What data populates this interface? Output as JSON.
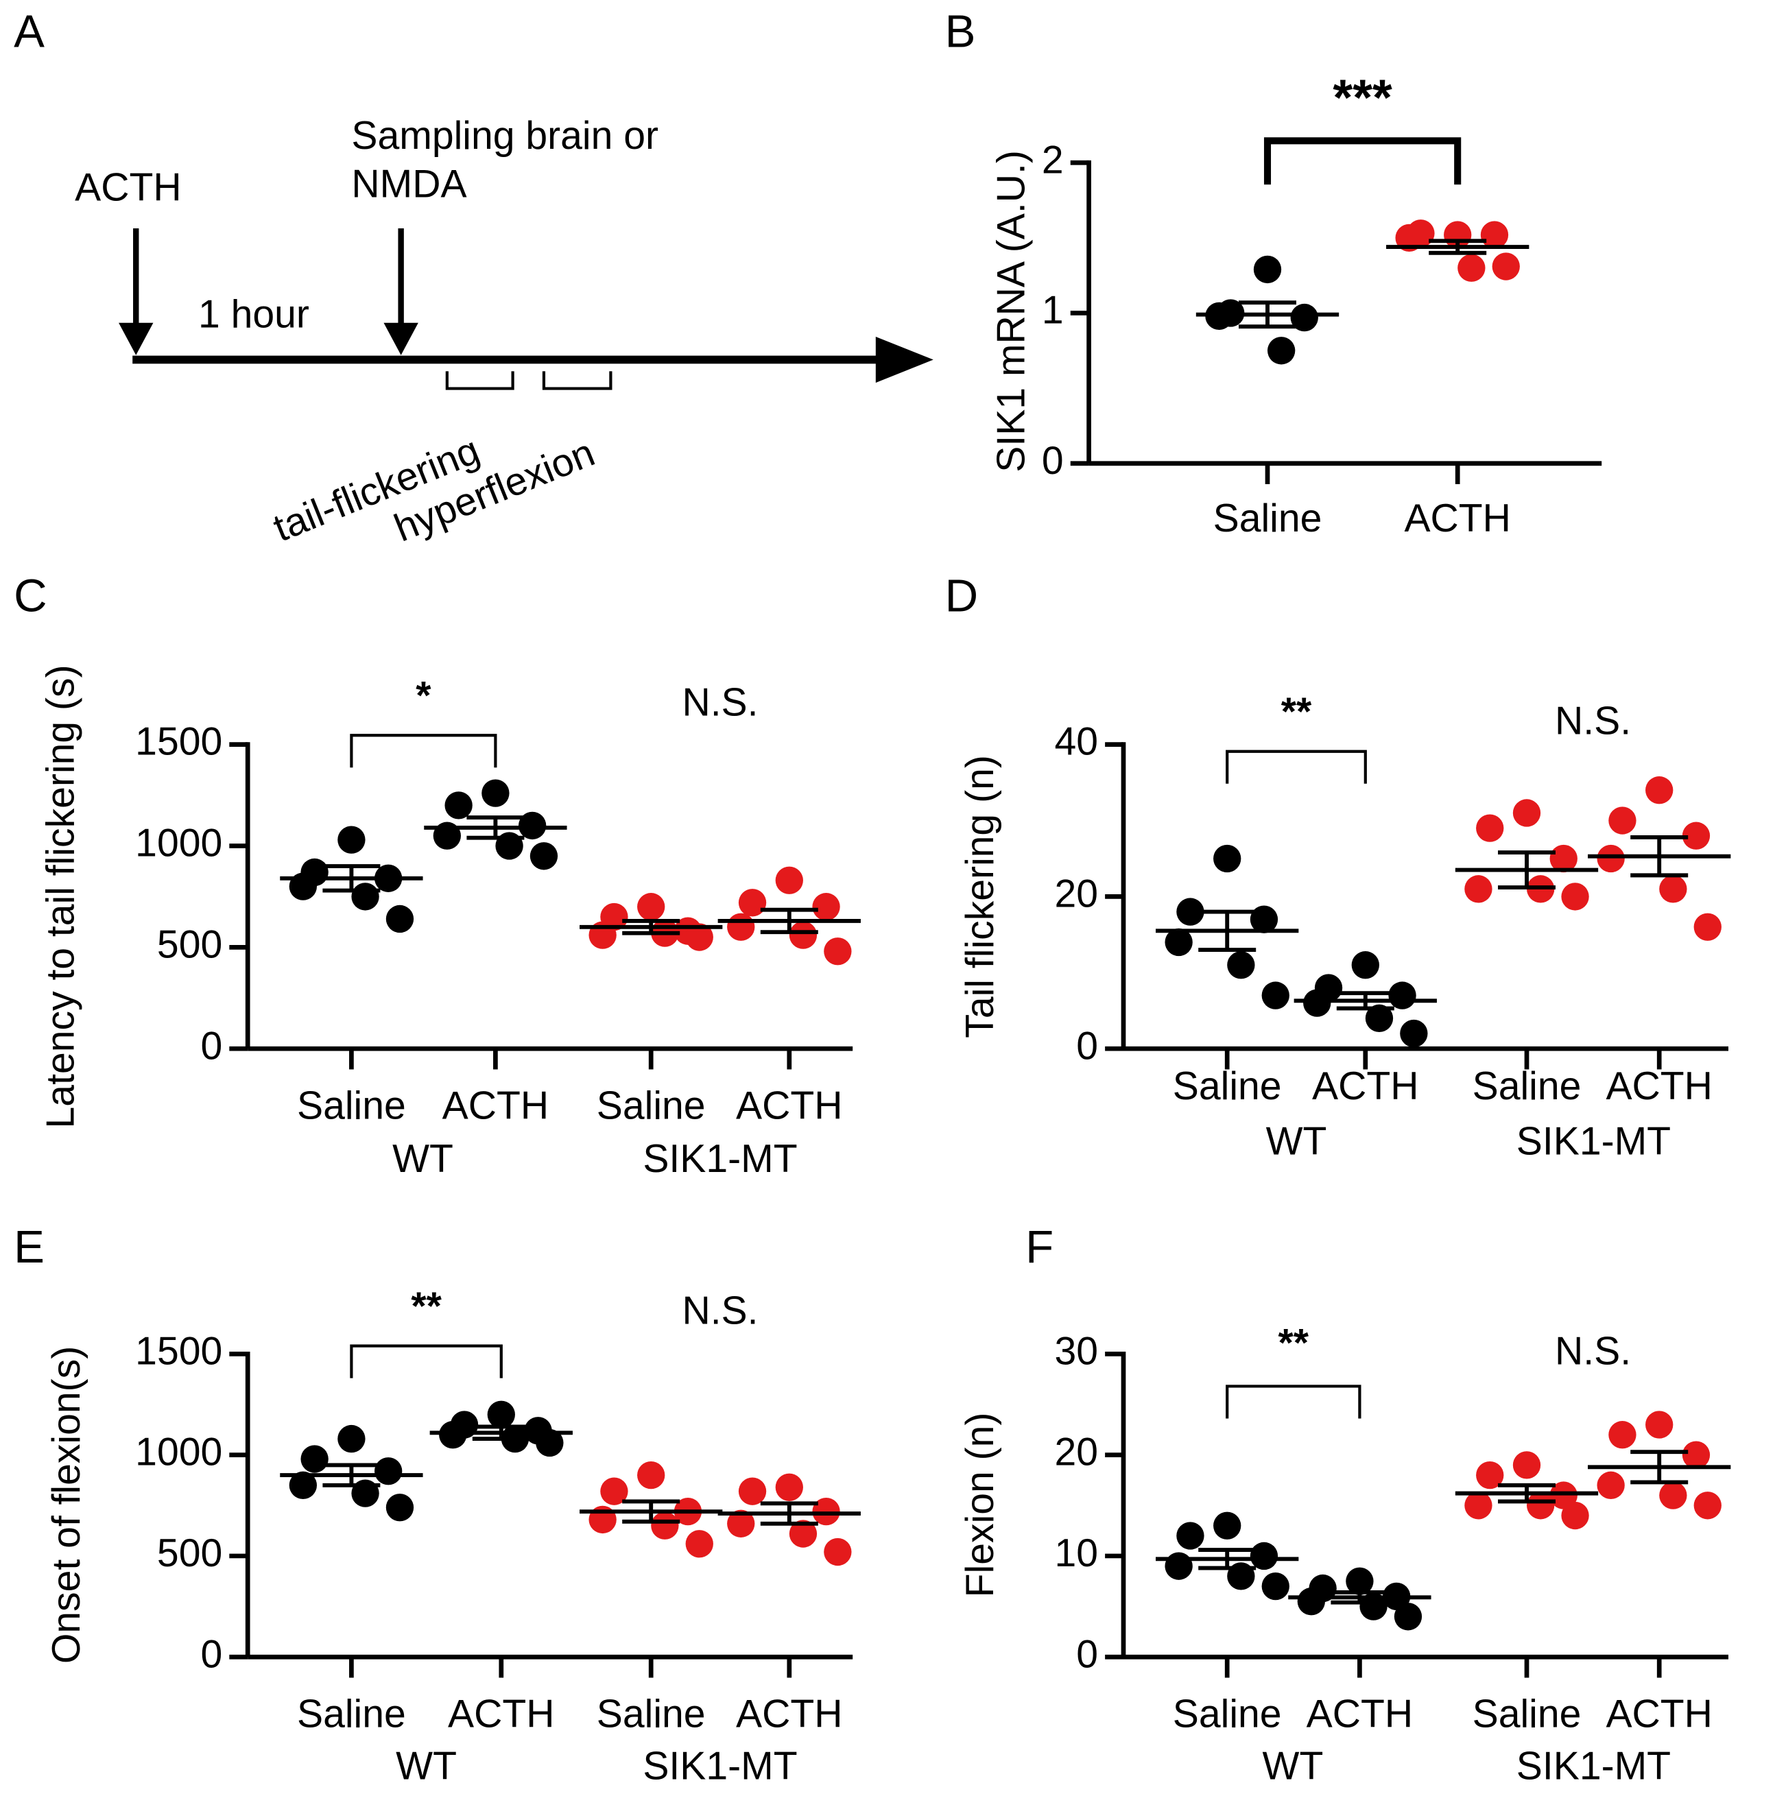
{
  "diagram": {
    "panel": "A",
    "labels": [
      "ACTH",
      "Sampling brain or",
      "NMDA",
      "1 hour",
      "tail-flickering",
      "hyperflexion"
    ]
  },
  "chart_data": [
    {
      "type": "dot",
      "panel": "B",
      "ylabel": "SIK1 mRNA (A.U.)",
      "categories": [
        "Saline",
        "ACTH"
      ],
      "colors": [
        "#000000",
        "#e41a1c"
      ],
      "points": [
        [
          1.29,
          1.0,
          0.97,
          0.98,
          0.75
        ],
        [
          1.52,
          1.53,
          1.52,
          1.5,
          1.3,
          1.31
        ]
      ],
      "mean": [
        0.99,
        1.44
      ],
      "sem": [
        0.08,
        0.04
      ],
      "ylim": [
        0,
        2
      ],
      "yticks": [
        0,
        1,
        2
      ],
      "significance_labels": [
        "***"
      ]
    },
    {
      "type": "dot",
      "panel": "C",
      "ylabel": "Latency to tail flickering (s)",
      "categories": [
        "Saline",
        "ACTH",
        "Saline",
        "ACTH"
      ],
      "group_labels": [
        "WT",
        "SIK1-MT"
      ],
      "colors": [
        "#000000",
        "#000000",
        "#e41a1c",
        "#e41a1c"
      ],
      "points": [
        [
          1030,
          870,
          840,
          800,
          750,
          640
        ],
        [
          1260,
          1200,
          1100,
          1050,
          1000,
          950
        ],
        [
          700,
          650,
          580,
          560,
          570,
          550
        ],
        [
          830,
          720,
          700,
          600,
          560,
          480
        ]
      ],
      "mean": [
        840,
        1090,
        600,
        630
      ],
      "sem": [
        60,
        50,
        30,
        55
      ],
      "ylim": [
        0,
        1500
      ],
      "yticks": [
        0,
        500,
        1000,
        1500
      ],
      "significance_labels": [
        "*",
        "N.S."
      ]
    },
    {
      "type": "dot",
      "panel": "D",
      "ylabel": "Tail flickering (n)",
      "categories": [
        "Saline",
        "ACTH",
        "Saline",
        "ACTH"
      ],
      "group_labels": [
        "WT",
        "SIK1-MT"
      ],
      "colors": [
        "#000000",
        "#000000",
        "#e41a1c",
        "#e41a1c"
      ],
      "points": [
        [
          25,
          18,
          17,
          14,
          11,
          7
        ],
        [
          11,
          8,
          7,
          6,
          4,
          2
        ],
        [
          31,
          29,
          25,
          21,
          21,
          20
        ],
        [
          34,
          30,
          28,
          25,
          21,
          16
        ]
      ],
      "mean": [
        15.5,
        6.3,
        23.5,
        25.3
      ],
      "sem": [
        2.5,
        1,
        2.3,
        2.5
      ],
      "ylim": [
        0,
        40
      ],
      "yticks": [
        0,
        20,
        40
      ],
      "significance_labels": [
        "**",
        "N.S."
      ]
    },
    {
      "type": "dot",
      "panel": "E",
      "ylabel": "Onset of flexion(s)",
      "categories": [
        "Saline",
        "ACTH",
        "Saline",
        "ACTH"
      ],
      "group_labels": [
        "WT",
        "SIK1-MT"
      ],
      "colors": [
        "#000000",
        "#000000",
        "#e41a1c",
        "#e41a1c"
      ],
      "points": [
        [
          1080,
          980,
          920,
          850,
          810,
          740
        ],
        [
          1200,
          1150,
          1120,
          1100,
          1080,
          1060
        ],
        [
          900,
          820,
          720,
          680,
          650,
          560
        ],
        [
          840,
          820,
          720,
          660,
          610,
          520
        ]
      ],
      "mean": [
        900,
        1110,
        720,
        710
      ],
      "sem": [
        50,
        30,
        50,
        50
      ],
      "ylim": [
        0,
        1500
      ],
      "yticks": [
        0,
        500,
        1000,
        1500
      ],
      "significance_labels": [
        "**",
        "N.S."
      ]
    },
    {
      "type": "dot",
      "panel": "F",
      "ylabel": "Flexion (n)",
      "categories": [
        "Saline",
        "ACTH",
        "Saline",
        "ACTH"
      ],
      "group_labels": [
        "WT",
        "SIK1-MT"
      ],
      "colors": [
        "#000000",
        "#000000",
        "#e41a1c",
        "#e41a1c"
      ],
      "points": [
        [
          13,
          12,
          10,
          9,
          8,
          7
        ],
        [
          7.5,
          6.8,
          6,
          5.5,
          5,
          4
        ],
        [
          19,
          18,
          16,
          15,
          15,
          14
        ],
        [
          23,
          22,
          20,
          17,
          16,
          15
        ]
      ],
      "mean": [
        9.7,
        5.9,
        16.2,
        18.8
      ],
      "sem": [
        0.9,
        0.5,
        0.8,
        1.5
      ],
      "ylim": [
        0,
        30
      ],
      "yticks": [
        0,
        10,
        20,
        30
      ],
      "significance_labels": [
        "**",
        "N.S."
      ]
    }
  ]
}
